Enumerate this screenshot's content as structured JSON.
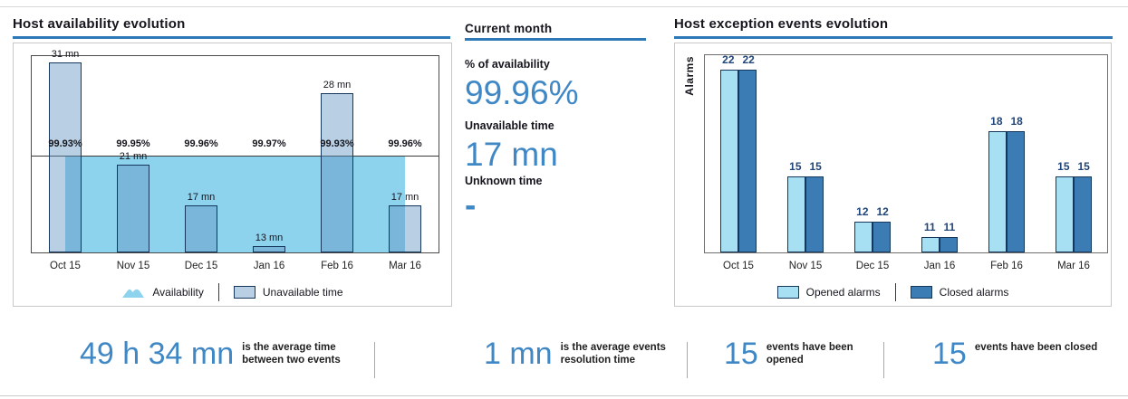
{
  "availability_panel": {
    "title": "Host availability evolution"
  },
  "current_month": {
    "title": "Current month",
    "availability_label": "% of availability",
    "availability_value": "99.96%",
    "unavailable_label": "Unavailable time",
    "unavailable_value": "17 mn",
    "unknown_label": "Unknown time",
    "unknown_value": "-"
  },
  "events_panel": {
    "title": "Host exception events evolution",
    "y_axis_label": "Alarms"
  },
  "chart_data": [
    {
      "name": "host_availability_evolution",
      "type": "bar+area",
      "categories": [
        "Oct 15",
        "Nov 15",
        "Dec 15",
        "Jan 16",
        "Feb 16",
        "Mar 16"
      ],
      "series": [
        {
          "name": "Availability",
          "style": "area",
          "unit": "%",
          "values": [
            99.93,
            99.95,
            99.96,
            99.97,
            99.93,
            99.96
          ],
          "labels": [
            "99.93%",
            "99.95%",
            "99.96%",
            "99.97%",
            "99.93%",
            "99.96%"
          ]
        },
        {
          "name": "Unavailable time",
          "style": "bar",
          "unit": "mn",
          "values": [
            31,
            21,
            17,
            13,
            28,
            17
          ],
          "labels": [
            "31 mn",
            "21 mn",
            "17 mn",
            "13 mn",
            "28 mn",
            "17 mn"
          ]
        }
      ],
      "legend": [
        {
          "label": "Availability",
          "swatch": "area"
        },
        {
          "label": "Unavailable time",
          "swatch": "bar"
        }
      ],
      "legend_position": "bottom",
      "grid": false
    },
    {
      "name": "host_exception_events_evolution",
      "type": "bar",
      "ylabel": "Alarms",
      "categories": [
        "Oct 15",
        "Nov 15",
        "Dec 15",
        "Jan 16",
        "Feb 16",
        "Mar 16"
      ],
      "series": [
        {
          "name": "Opened alarms",
          "values": [
            22,
            15,
            12,
            11,
            18,
            15
          ]
        },
        {
          "name": "Closed alarms",
          "values": [
            22,
            15,
            12,
            11,
            18,
            15
          ]
        }
      ],
      "legend": [
        {
          "label": "Opened alarms",
          "swatch": "opened"
        },
        {
          "label": "Closed alarms",
          "swatch": "closed"
        }
      ],
      "legend_position": "bottom",
      "grid": false
    }
  ],
  "summary_stats": [
    {
      "value": "49 h 34 mn",
      "label_line1": "is the average time",
      "label_line2": "between two events"
    },
    {
      "value": "1 mn",
      "label_line1": "is the average events",
      "label_line2": "resolution time"
    },
    {
      "value": "15",
      "label_line1": "events have been",
      "label_line2": "opened"
    },
    {
      "value": "15",
      "label_line1": "events have been closed",
      "label_line2": ""
    }
  ],
  "colors": {
    "accent_underline": "#2d79b8",
    "big_number": "#3f88c5",
    "availability_area": "#8dd3ee",
    "unavailable_bar": "#b9cfe3",
    "bar_border": "#16375c",
    "opened_bar": "#a6e0f2",
    "closed_bar": "#3a7cb3",
    "alarm_value_label": "#1f4579"
  }
}
